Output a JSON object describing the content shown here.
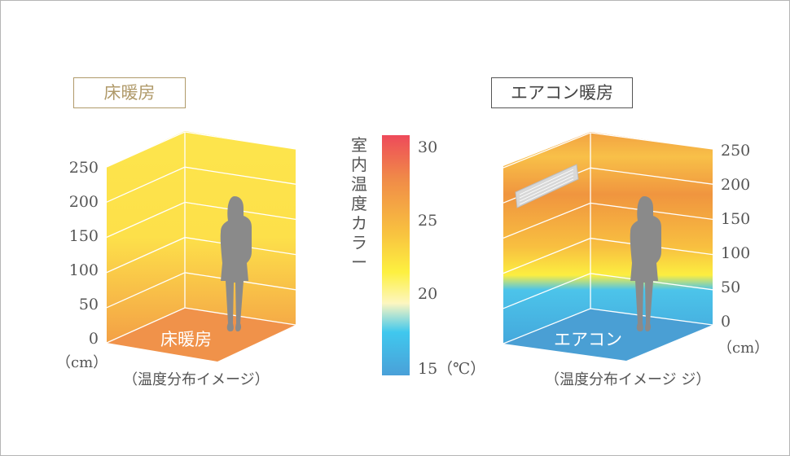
{
  "left_panel": {
    "title": "床暖房",
    "title_color": "#b09a6a",
    "floor_label": "床暖房",
    "caption": "（温度分布イメージ）",
    "axis_ticks": [
      "250",
      "200",
      "150",
      "100",
      "50",
      "0"
    ],
    "axis_unit": "（cm）",
    "colors": {
      "wall_top": "#fde64c",
      "wall_bottom": "#f3a447",
      "floor": "#f0924a"
    }
  },
  "right_panel": {
    "title": "エアコン暖房",
    "title_color": "#555555",
    "floor_label": "エアコン",
    "caption": "（温度分布イメージ ジ）",
    "axis_ticks": [
      "250",
      "200",
      "150",
      "100",
      "50",
      "0"
    ],
    "axis_unit": "（cm）",
    "colors": {
      "wall_top": "#f0a040",
      "wall_mid": "#fcef40",
      "wall_bottom": "#4ab0e0",
      "floor": "#4a9fd4"
    }
  },
  "legend": {
    "title": "室内温度カラー",
    "ticks": [
      "30",
      "25",
      "20",
      "15"
    ],
    "unit": "（℃）",
    "colors": [
      "#ee4a5a",
      "#f08a48",
      "#f8c040",
      "#fdf040",
      "#fdf6c0",
      "#40c8ee",
      "#4aa0d8"
    ]
  }
}
